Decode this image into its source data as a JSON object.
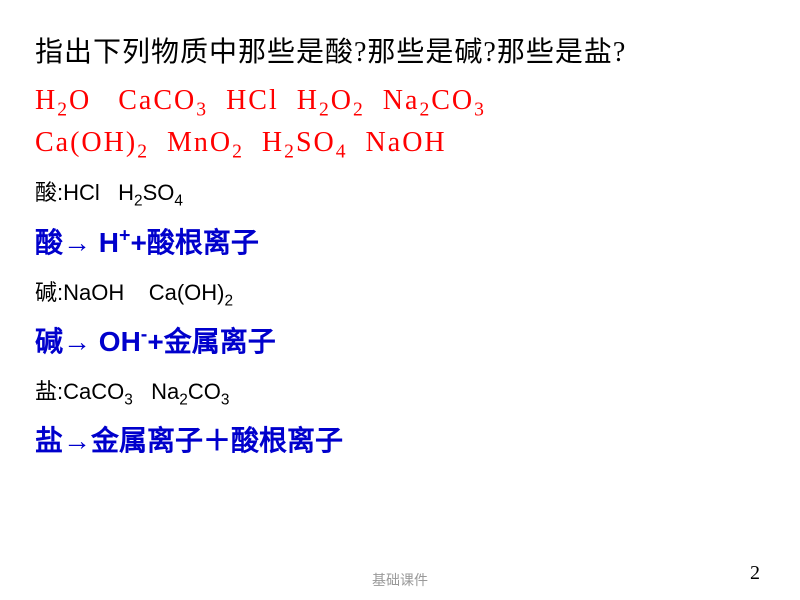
{
  "title": "指出下列物质中那些是酸?那些是碱?那些是盐?",
  "formulas_line1": {
    "items": [
      "H₂O",
      "CaCO₃",
      "HCl",
      "H₂O₂",
      "Na₂CO₃"
    ]
  },
  "formulas_line2": {
    "items": [
      "Ca(OH)₂",
      "MnO₂",
      "H₂SO₄",
      "NaOH"
    ]
  },
  "acid_answer_label": "酸:",
  "acid_answer_items": "HCl   H₂SO₄",
  "acid_definition_prefix": "酸",
  "acid_definition_arrow": "→ ",
  "acid_definition_formula": "H⁺+",
  "acid_definition_suffix": "酸根离子",
  "base_answer_label": "碱:",
  "base_answer_items": "NaOH    Ca(OH)₂",
  "base_definition_prefix": "碱",
  "base_definition_arrow": "→ ",
  "base_definition_formula": "OH⁻+",
  "base_definition_suffix": "金属离子",
  "salt_answer_label": "盐:",
  "salt_answer_items": "CaCO₃   Na₂CO₃",
  "salt_definition_prefix": "盐",
  "salt_definition_arrow": "→",
  "salt_definition_suffix": "金属离子＋酸根离子",
  "footer_text": "基础课件",
  "page_number": "2",
  "colors": {
    "title": "#000000",
    "formulas": "#ff0000",
    "answers": "#000000",
    "definitions": "#0000cc",
    "background": "#ffffff",
    "footer": "#999999"
  },
  "fonts": {
    "title_size": 28,
    "formula_size": 28,
    "answer_size": 22,
    "definition_size": 28
  }
}
